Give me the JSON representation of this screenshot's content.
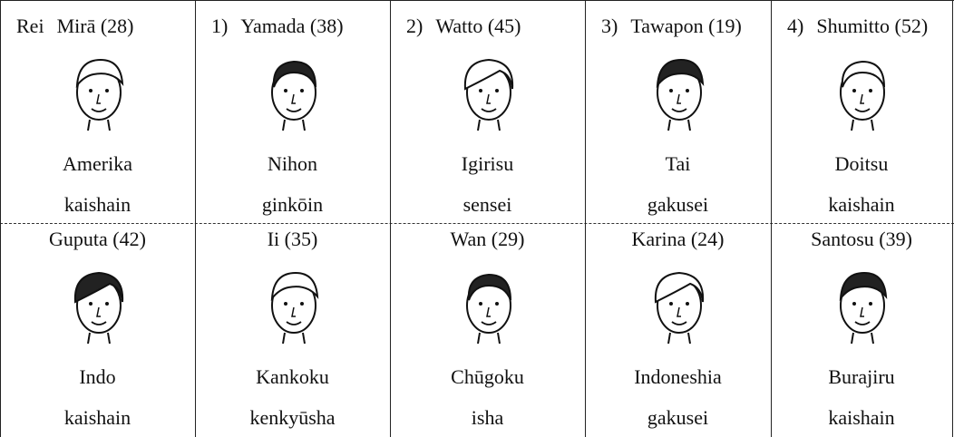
{
  "cells": [
    {
      "prefix": "Rei",
      "name": "Mirā (28)",
      "country": "Amerika",
      "occupation": "kaishain"
    },
    {
      "prefix": "1)",
      "name": "Yamada (38)",
      "country": "Nihon",
      "occupation": "ginkōin"
    },
    {
      "prefix": "2)",
      "name": "Watto (45)",
      "country": "Igirisu",
      "occupation": "sensei"
    },
    {
      "prefix": "3)",
      "name": "Tawapon (19)",
      "country": "Tai",
      "occupation": "gakusei"
    },
    {
      "prefix": "4)",
      "name": "Shumitto (52)",
      "country": "Doitsu",
      "occupation": "kaishain"
    },
    {
      "name": "Guputa (42)",
      "country": "Indo",
      "occupation": "kaishain"
    },
    {
      "name": "Ii (35)",
      "country": "Kankoku",
      "occupation": "kenkyūsha"
    },
    {
      "name": "Wan (29)",
      "country": "Chūgoku",
      "occupation": "isha"
    },
    {
      "name": "Karina (24)",
      "country": "Indoneshia",
      "occupation": "gakusei"
    },
    {
      "name": "Santosu (39)",
      "country": "Burajiru",
      "occupation": "kaishain"
    }
  ]
}
